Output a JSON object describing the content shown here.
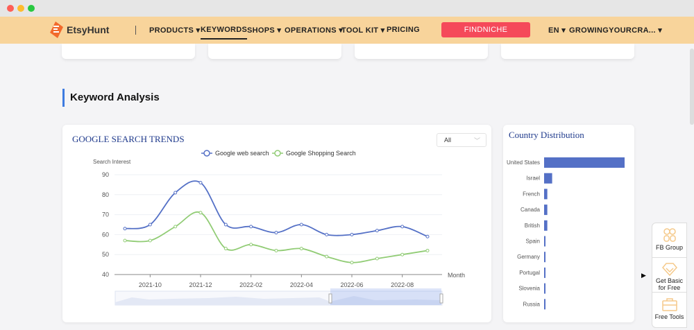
{
  "nav": {
    "brand": "EtsyHunt",
    "items": [
      {
        "label": "PRODUCTS ▾",
        "active": false
      },
      {
        "label": "KEYWORDS",
        "active": true
      },
      {
        "label": "SHOPS ▾",
        "active": false
      },
      {
        "label": "OPERATIONS ▾",
        "active": false
      },
      {
        "label": "TOOL KIT ▾",
        "active": false
      },
      {
        "label": "PRICING",
        "active": false
      }
    ],
    "cta": "FINDNICHE",
    "lang": "EN ▾",
    "account": "GROWINGYOURCRA... ▾"
  },
  "section_title": "Keyword Analysis",
  "trends": {
    "title": "GOOGLE SEARCH TRENDS",
    "filter": "All",
    "colors": {
      "web": "#5470c6",
      "shopping": "#91cc75"
    }
  },
  "chart_data": [
    {
      "type": "line",
      "title": "GOOGLE SEARCH TRENDS",
      "ylabel": "Search Interest",
      "xlabel": "Month",
      "ylim": [
        40,
        90
      ],
      "yticks": [
        40,
        50,
        60,
        70,
        80,
        90
      ],
      "x": [
        "2021-09",
        "2021-10",
        "2021-11",
        "2021-12",
        "2022-01",
        "2022-02",
        "2022-03",
        "2022-04",
        "2022-05",
        "2022-06",
        "2022-07",
        "2022-08",
        "2022-09"
      ],
      "xtick_labels": [
        "2021-10",
        "2021-12",
        "2022-02",
        "2022-04",
        "2022-06",
        "2022-08"
      ],
      "grid": true,
      "legend": "top-center",
      "series": [
        {
          "name": "Google web search",
          "values": [
            63,
            65,
            81,
            86,
            65,
            64,
            61,
            65,
            60,
            60,
            62,
            64,
            59
          ]
        },
        {
          "name": "Google Shopping Search",
          "values": [
            57,
            57,
            64,
            71,
            53,
            55,
            52,
            53,
            49,
            46,
            48,
            50,
            52
          ]
        }
      ]
    },
    {
      "type": "bar",
      "orientation": "horizontal",
      "title": "Country Distribution",
      "color": "#5470c6",
      "categories": [
        "United States",
        "Israel",
        "French",
        "Canada",
        "British",
        "Spain",
        "Germany",
        "Portugal",
        "Slovenia",
        "Russia"
      ],
      "values": [
        100,
        10,
        4,
        4,
        4,
        1.5,
        1.5,
        1.5,
        1.5,
        1.5
      ]
    }
  ],
  "widget": {
    "items": [
      {
        "label": "FB Group",
        "icon": "users-icon"
      },
      {
        "label": "Get Basic for Free",
        "icon": "diamond-icon"
      },
      {
        "label": "Free Tools",
        "icon": "toolbox-icon"
      }
    ]
  }
}
